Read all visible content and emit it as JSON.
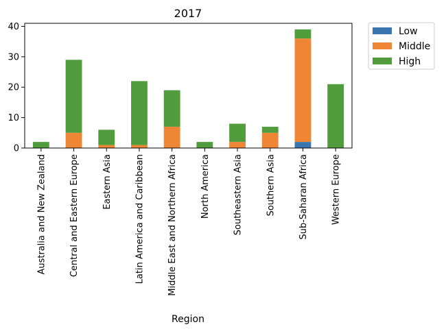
{
  "chart_data": {
    "type": "bar",
    "stacked": true,
    "title": "2017",
    "xlabel": "Region",
    "ylabel": "",
    "ylim": [
      0,
      41
    ],
    "yticks": [
      0,
      10,
      20,
      30,
      40
    ],
    "grid": false,
    "legend_position": "outside-top-right",
    "categories": [
      "Australia and New Zealand",
      "Central and Eastern Europe",
      "Eastern Asia",
      "Latin America and Caribbean",
      "Middle East and Northern Africa",
      "North America",
      "Southeastern Asia",
      "Southern Asia",
      "Sub-Saharan Africa",
      "Western Europe"
    ],
    "series": [
      {
        "name": "Low",
        "color": "#3a75b0",
        "values": [
          0,
          0,
          0,
          0,
          0,
          0,
          0,
          0,
          2,
          0
        ]
      },
      {
        "name": "Middle",
        "color": "#ef8636",
        "values": [
          0,
          5,
          1,
          1,
          7,
          0,
          2,
          5,
          34,
          0
        ]
      },
      {
        "name": "High",
        "color": "#519d3e",
        "values": [
          2,
          24,
          5,
          21,
          12,
          2,
          6,
          2,
          3,
          21
        ]
      }
    ]
  }
}
